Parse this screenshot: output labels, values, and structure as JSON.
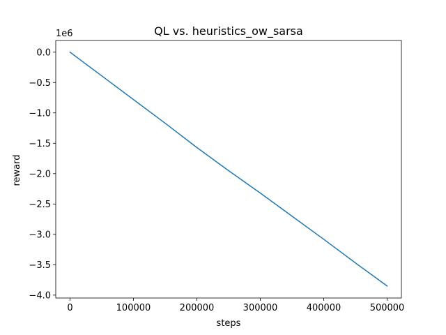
{
  "chart_data": {
    "type": "line",
    "title": "QL vs. heuristics_ow_sarsa",
    "xlabel": "steps",
    "ylabel": "reward",
    "y_offset_label": "1e6",
    "xlim": [
      -22500,
      522500
    ],
    "ylim": [
      -4.0475,
      0.1925
    ],
    "x_ticks": [
      0,
      100000,
      200000,
      300000,
      400000,
      500000
    ],
    "x_tick_labels": [
      "0",
      "100000",
      "200000",
      "300000",
      "400000",
      "500000"
    ],
    "y_ticks": [
      0.0,
      -0.5,
      -1.0,
      -1.5,
      -2.0,
      -2.5,
      -3.0,
      -3.5,
      -4.0
    ],
    "y_tick_labels": [
      "0.0",
      "−0.5",
      "−1.0",
      "−1.5",
      "−2.0",
      "−2.5",
      "−3.0",
      "−3.5",
      "−4.0"
    ],
    "grid": false,
    "legend": "none",
    "series": [
      {
        "color": "#1f77b4",
        "x": [
          0,
          50000,
          100000,
          150000,
          200000,
          250000,
          300000,
          350000,
          400000,
          450000,
          500000
        ],
        "y": [
          0.0,
          -0.39,
          -0.78,
          -1.17,
          -1.57,
          -1.95,
          -2.32,
          -2.7,
          -3.08,
          -3.47,
          -3.85
        ]
      }
    ]
  }
}
